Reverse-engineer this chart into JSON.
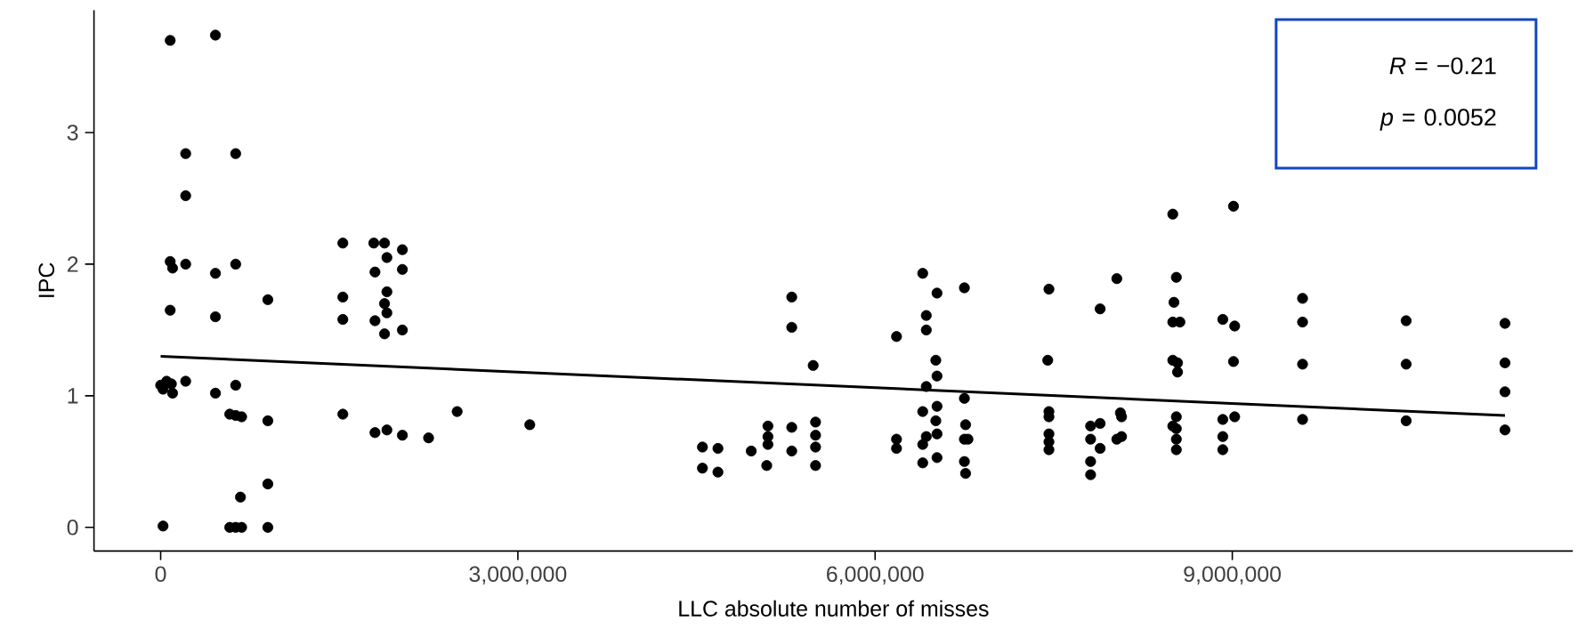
{
  "chart_data": {
    "type": "scatter",
    "xlabel": "LLC absolute number of misses",
    "ylabel": "IPC",
    "annotations": [
      "*R* = −0.21",
      "*p* = 0.0052"
    ],
    "xlim": [
      -560000,
      11860000
    ],
    "ylim": [
      -0.18,
      3.93
    ],
    "xticks": [
      0,
      {
        "value": 3000000,
        "label": "3,000,000"
      },
      {
        "value": 6000000,
        "label": "6,000,000"
      },
      {
        "value": 9000000,
        "label": "9,000,000"
      }
    ],
    "yticks": [
      0,
      1,
      2,
      3
    ],
    "marker": "circle",
    "series": [
      {
        "color": "#000000",
        "x": [
          80000,
          460000,
          210000,
          630000,
          210000,
          80000,
          100000,
          210000,
          460000,
          630000,
          80000,
          460000,
          900000,
          1530000,
          1790000,
          1880000,
          2030000,
          1900000,
          1800000,
          2030000,
          1900000,
          1880000,
          1900000,
          1530000,
          1530000,
          1800000,
          1880000,
          2030000,
          0,
          50000,
          90000,
          100000,
          20000,
          210000,
          460000,
          630000,
          580000,
          630000,
          680000,
          900000,
          1530000,
          1800000,
          1900000,
          2030000,
          2250000,
          2490000,
          3100000,
          900000,
          670000,
          20000,
          580000,
          630000,
          680000,
          900000,
          4550000,
          4680000,
          4550000,
          4680000,
          4960000,
          5100000,
          5100000,
          5100000,
          5090000,
          5300000,
          5300000,
          5300000,
          5300000,
          5480000,
          5500000,
          5500000,
          5500000,
          5500000,
          6180000,
          6180000,
          6180000,
          6400000,
          6520000,
          6750000,
          6430000,
          6430000,
          6510000,
          6520000,
          6430000,
          6520000,
          6400000,
          6510000,
          6520000,
          6430000,
          6400000,
          6520000,
          6400000,
          6750000,
          6760000,
          6750000,
          6780000,
          6750000,
          6760000,
          7460000,
          7450000,
          7460000,
          7460000,
          7460000,
          7460000,
          7460000,
          8500000,
          9010000,
          8030000,
          7890000,
          8530000,
          8510000,
          8500000,
          8560000,
          8920000,
          9020000,
          9590000,
          9590000,
          10460000,
          11290000,
          8500000,
          8540000,
          8540000,
          9010000,
          9590000,
          10460000,
          11290000,
          11290000,
          9590000,
          10460000,
          11290000,
          7810000,
          7890000,
          7810000,
          7890000,
          7810000,
          7810000,
          8060000,
          8070000,
          8030000,
          8070000,
          8530000,
          8530000,
          8530000,
          8530000,
          8500000,
          8920000,
          9020000,
          8920000,
          8920000
        ],
        "values": [
          3.7,
          3.74,
          2.84,
          2.84,
          2.52,
          2.02,
          1.97,
          2.0,
          1.93,
          2.0,
          1.65,
          1.6,
          1.73,
          2.16,
          2.16,
          2.16,
          2.11,
          2.05,
          1.94,
          1.96,
          1.79,
          1.7,
          1.63,
          1.75,
          1.58,
          1.57,
          1.47,
          1.5,
          1.08,
          1.11,
          1.09,
          1.02,
          1.05,
          1.11,
          1.02,
          1.08,
          0.86,
          0.85,
          0.84,
          0.81,
          0.86,
          0.72,
          0.74,
          0.7,
          0.68,
          0.88,
          0.78,
          0.33,
          0.23,
          0.01,
          0,
          0,
          0,
          0,
          0.61,
          0.6,
          0.45,
          0.42,
          0.58,
          0.77,
          0.69,
          0.63,
          0.47,
          1.75,
          1.52,
          0.76,
          0.58,
          1.23,
          0.8,
          0.7,
          0.61,
          0.47,
          1.45,
          0.67,
          0.6,
          1.93,
          1.78,
          1.82,
          1.61,
          1.5,
          1.27,
          1.15,
          1.07,
          0.92,
          0.88,
          0.81,
          0.71,
          0.69,
          0.63,
          0.53,
          0.49,
          0.98,
          0.78,
          0.67,
          0.67,
          0.5,
          0.41,
          1.81,
          1.27,
          0.88,
          0.84,
          0.71,
          0.65,
          0.59,
          2.38,
          2.44,
          1.89,
          1.66,
          1.9,
          1.71,
          1.56,
          1.56,
          1.58,
          1.53,
          1.74,
          1.56,
          1.57,
          1.55,
          1.27,
          1.25,
          1.18,
          1.26,
          1.24,
          1.24,
          1.25,
          1.03,
          0.82,
          0.81,
          0.74,
          0.77,
          0.79,
          0.67,
          0.6,
          0.5,
          0.4,
          0.87,
          0.84,
          0.67,
          0.69,
          0.84,
          0.75,
          0.67,
          0.59,
          0.77,
          0.82,
          0.84,
          0.69,
          0.59
        ]
      },
      {
        "type": "line",
        "color": "#000000",
        "marker": "none",
        "x": [
          0,
          11290000
        ],
        "values": [
          1.3,
          0.85
        ]
      }
    ]
  }
}
